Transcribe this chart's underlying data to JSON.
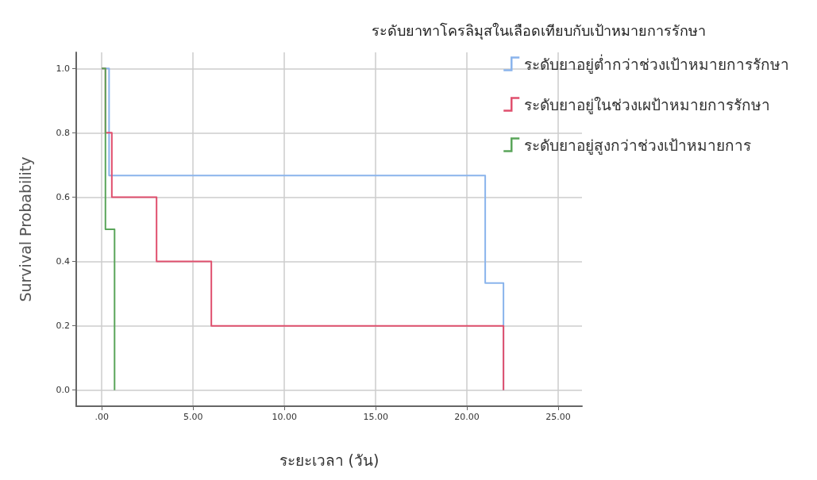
{
  "chart_data": {
    "type": "step",
    "title": "ระดับยาทาโครลิมุสในเลือดเทียบกับเป้าหมายการรักษา",
    "xlabel": "ระยะเวลา (วัน)",
    "ylabel": "Survival Probability",
    "series": [
      {
        "name": "ระดับยาอยู่ต่ำกว่าช่วงเป้าหมายการรักษา",
        "color": "#8ab4ec",
        "x": [
          0,
          0.4,
          21,
          22
        ],
        "values": [
          1,
          0.667,
          0.333,
          0
        ]
      },
      {
        "name": "ระดับยาอยู่ในช่วงเผป้าหมายการรักษา",
        "color": "#e0506e",
        "x": [
          0,
          0.2,
          0.55,
          3,
          6,
          22
        ],
        "values": [
          1,
          0.8,
          0.6,
          0.4,
          0.2,
          0
        ]
      },
      {
        "name": "ระดับยาอยู่สูงกว่าช่วงเป้าหมายการ",
        "color": "#5aa55a",
        "x": [
          0,
          0.2,
          0.7
        ],
        "values": [
          1,
          0.5,
          0
        ]
      }
    ],
    "xlim": [
      -1.4,
      26.3
    ],
    "xticks": [
      {
        "value": 0,
        "label": ".00"
      },
      {
        "value": 5,
        "label": "5.00"
      },
      {
        "value": 10,
        "label": "10.00"
      },
      {
        "value": 15,
        "label": "15.00"
      },
      {
        "value": 20,
        "label": "20.00"
      },
      {
        "value": 25,
        "label": "25.00"
      }
    ],
    "ylim": [
      -0.05,
      1.05
    ],
    "yticks": [
      {
        "value": 0,
        "label": "0.0"
      },
      {
        "value": 0.2,
        "label": "0.2"
      },
      {
        "value": 0.4,
        "label": "0.4"
      },
      {
        "value": 0.6,
        "label": "0.6"
      },
      {
        "value": 0.8,
        "label": "0.8"
      },
      {
        "value": 1,
        "label": "1.0"
      }
    ],
    "grid": true,
    "legend": "top right",
    "marker": "none",
    "line_style": "solid"
  }
}
